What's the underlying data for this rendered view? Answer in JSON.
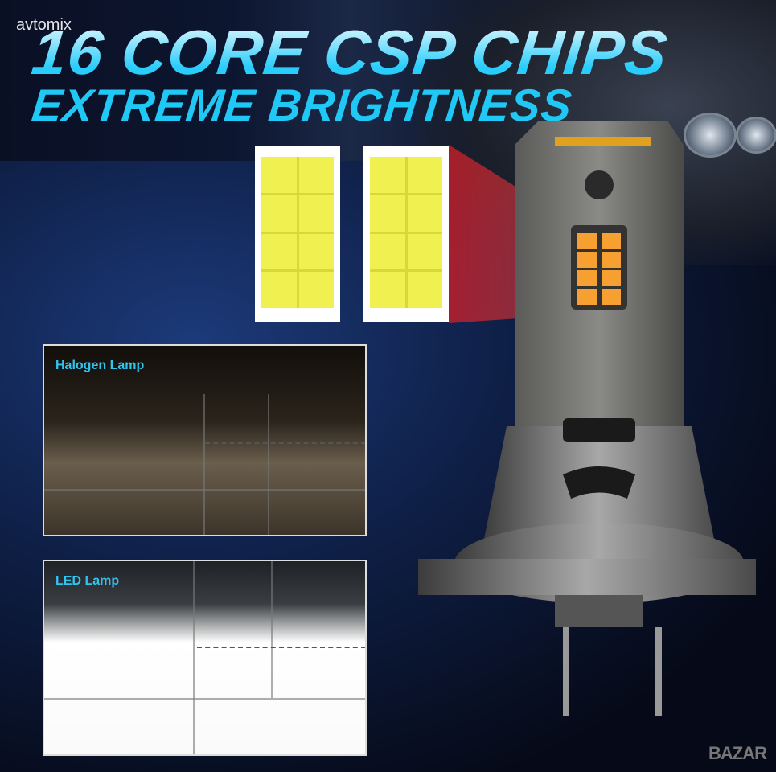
{
  "watermark": "avtomix",
  "headline": {
    "line1": "16 CORE CSP CHIPS",
    "line2": "EXTREME BRIGHTNESS"
  },
  "comparison": [
    {
      "label": "Halogen Lamp"
    },
    {
      "label": "LED Lamp"
    }
  ],
  "logo": "BAZAR",
  "colors": {
    "accent": "#29cdfb",
    "chip": "#f0f050",
    "led_chip": "#f5a030",
    "beam": "#c81e28"
  }
}
